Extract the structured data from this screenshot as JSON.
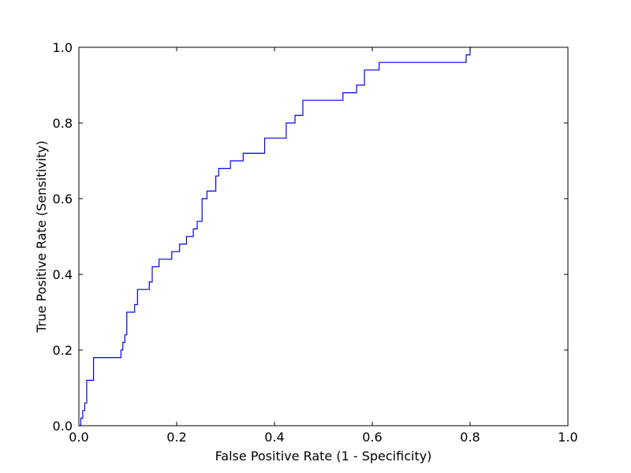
{
  "chart_data": {
    "type": "line",
    "title": "",
    "xlabel": "False Positive Rate (1 - Specificity)",
    "ylabel": "True Positive Rate (Sensitivity)",
    "xlim": [
      0.0,
      1.0
    ],
    "ylim": [
      0.0,
      1.0
    ],
    "xticks": [
      "0.0",
      "0.2",
      "0.4",
      "0.6",
      "0.8",
      "1.0"
    ],
    "yticks": [
      "0.0",
      "0.2",
      "0.4",
      "0.6",
      "0.8",
      "1.0"
    ],
    "grid": false,
    "legend": "none",
    "series": [
      {
        "color": "#0000ff",
        "x": [
          0.0,
          0.004,
          0.004,
          0.008,
          0.008,
          0.012,
          0.012,
          0.016,
          0.016,
          0.02,
          0.02,
          0.03,
          0.03,
          0.086,
          0.086,
          0.09,
          0.09,
          0.094,
          0.094,
          0.098,
          0.098,
          0.114,
          0.114,
          0.12,
          0.12,
          0.144,
          0.144,
          0.15,
          0.15,
          0.164,
          0.164,
          0.19,
          0.19,
          0.206,
          0.206,
          0.22,
          0.22,
          0.234,
          0.234,
          0.238,
          0.238,
          0.242,
          0.242,
          0.252,
          0.252,
          0.262,
          0.262,
          0.28,
          0.28,
          0.286,
          0.286,
          0.31,
          0.31,
          0.336,
          0.336,
          0.38,
          0.38,
          0.424,
          0.424,
          0.442,
          0.442,
          0.458,
          0.458,
          0.54,
          0.54,
          0.568,
          0.568,
          0.584,
          0.584,
          0.614,
          0.614,
          0.792,
          0.792,
          0.8,
          0.8,
          0.804
        ],
        "y": [
          0.0,
          0.0,
          0.02,
          0.02,
          0.04,
          0.04,
          0.06,
          0.06,
          0.12,
          0.12,
          0.12,
          0.12,
          0.18,
          0.18,
          0.2,
          0.2,
          0.22,
          0.22,
          0.24,
          0.24,
          0.3,
          0.3,
          0.32,
          0.32,
          0.36,
          0.36,
          0.38,
          0.38,
          0.42,
          0.42,
          0.44,
          0.44,
          0.46,
          0.46,
          0.48,
          0.48,
          0.5,
          0.5,
          0.52,
          0.52,
          0.52,
          0.52,
          0.54,
          0.54,
          0.6,
          0.6,
          0.62,
          0.62,
          0.66,
          0.66,
          0.68,
          0.68,
          0.7,
          0.7,
          0.72,
          0.72,
          0.76,
          0.76,
          0.8,
          0.8,
          0.82,
          0.82,
          0.86,
          0.86,
          0.88,
          0.88,
          0.9,
          0.9,
          0.94,
          0.94,
          0.96,
          0.96,
          0.98,
          0.98,
          1.0,
          1.0
        ]
      }
    ]
  }
}
